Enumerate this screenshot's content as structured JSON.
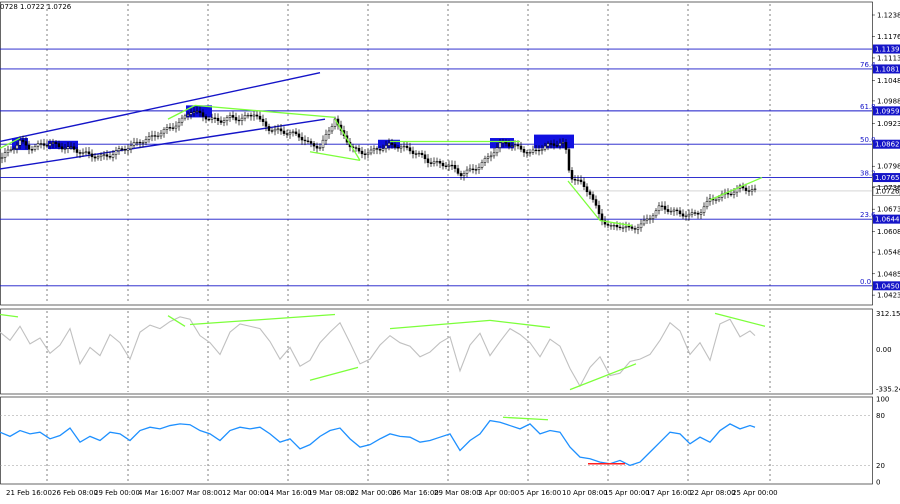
{
  "header": {
    "ohlc_text": "0728 1.0722 1.0726"
  },
  "chart_data": [
    {
      "type": "candlestick",
      "price_axis_ticks": [
        "1.1238",
        "1.1176",
        "1.1113",
        "1.1048",
        "1.0988",
        "1.0923",
        "1.0798",
        "1.0736",
        "1.0673",
        "1.0608",
        "1.0548",
        "1.0485",
        "1.0423"
      ],
      "ylim": [
        1.04,
        1.127
      ],
      "horizontal_levels": [
        {
          "value": 1.1139,
          "label": "1.1139",
          "fibo": ""
        },
        {
          "value": 1.1081,
          "label": "1.1081",
          "fibo": "76.4"
        },
        {
          "value": 1.0959,
          "label": "1.0959",
          "fibo": "61.8"
        },
        {
          "value": 1.0862,
          "label": "1.0862",
          "fibo": "50.0"
        },
        {
          "value": 1.0765,
          "label": "1.0765",
          "fibo": "38.2"
        },
        {
          "value": 1.0644,
          "label": "1.0644",
          "fibo": "23.6"
        },
        {
          "value": 1.045,
          "label": "1.0450",
          "fibo": "0.0"
        }
      ],
      "current_price": {
        "value": 1.0726,
        "label": "1.0726"
      },
      "x_labels": [
        "21 Feb 16:00",
        "26 Feb 08:00",
        "29 Feb 00:00",
        "4 Mar 16:00",
        "7 Mar 08:00",
        "12 Mar 00:00",
        "14 Mar 16:00",
        "19 Mar 08:00",
        "22 Mar 00:00",
        "26 Mar 16:00",
        "29 Mar 08:00",
        "3 Apr 00:00",
        "5 Apr 16:00",
        "10 Apr 08:00",
        "15 Apr 00:00",
        "17 Apr 16:00",
        "22 Apr 08:00",
        "25 Apr 00:00"
      ],
      "close_path": [
        [
          0,
          1.082
        ],
        [
          10,
          1.0845
        ],
        [
          20,
          1.087
        ],
        [
          30,
          1.085
        ],
        [
          40,
          1.086
        ],
        [
          50,
          1.0865
        ],
        [
          60,
          1.0855
        ],
        [
          70,
          1.085
        ],
        [
          80,
          1.084
        ],
        [
          90,
          1.083
        ],
        [
          100,
          1.0825
        ],
        [
          110,
          1.083
        ],
        [
          120,
          1.0845
        ],
        [
          130,
          1.0855
        ],
        [
          140,
          1.087
        ],
        [
          150,
          1.088
        ],
        [
          160,
          1.0895
        ],
        [
          170,
          1.091
        ],
        [
          180,
          1.0925
        ],
        [
          190,
          1.096
        ],
        [
          200,
          1.095
        ],
        [
          210,
          1.0935
        ],
        [
          220,
          1.093
        ],
        [
          230,
          1.094
        ],
        [
          240,
          1.0935
        ],
        [
          250,
          1.0945
        ],
        [
          255,
          1.0955
        ],
        [
          260,
          1.093
        ],
        [
          270,
          1.0905
        ],
        [
          280,
          1.09
        ],
        [
          290,
          1.0895
        ],
        [
          300,
          1.0885
        ],
        [
          310,
          1.086
        ],
        [
          320,
          1.0855
        ],
        [
          330,
          1.0905
        ],
        [
          335,
          1.094
        ],
        [
          340,
          1.09
        ],
        [
          350,
          1.086
        ],
        [
          360,
          1.0835
        ],
        [
          370,
          1.084
        ],
        [
          380,
          1.085
        ],
        [
          390,
          1.086
        ],
        [
          400,
          1.0855
        ],
        [
          410,
          1.0845
        ],
        [
          420,
          1.083
        ],
        [
          430,
          1.081
        ],
        [
          440,
          1.0805
        ],
        [
          450,
          1.08
        ],
        [
          460,
          1.0775
        ],
        [
          470,
          1.0785
        ],
        [
          480,
          1.08
        ],
        [
          490,
          1.083
        ],
        [
          500,
          1.086
        ],
        [
          505,
          1.087
        ],
        [
          510,
          1.086
        ],
        [
          520,
          1.085
        ],
        [
          530,
          1.0835
        ],
        [
          540,
          1.085
        ],
        [
          550,
          1.086
        ],
        [
          560,
          1.0865
        ],
        [
          565,
          1.086
        ],
        [
          570,
          1.077
        ],
        [
          580,
          1.075
        ],
        [
          590,
          1.072
        ],
        [
          600,
          1.065
        ],
        [
          610,
          1.062
        ],
        [
          620,
          1.0625
        ],
        [
          630,
          1.0615
        ],
        [
          640,
          1.0625
        ],
        [
          650,
          1.065
        ],
        [
          660,
          1.068
        ],
        [
          670,
          1.067
        ],
        [
          680,
          1.066
        ],
        [
          690,
          1.0655
        ],
        [
          700,
          1.0665
        ],
        [
          710,
          1.07
        ],
        [
          720,
          1.071
        ],
        [
          730,
          1.072
        ],
        [
          740,
          1.0735
        ],
        [
          750,
          1.073
        ],
        [
          755,
          1.0726
        ]
      ],
      "trend_channel": {
        "upper": [
          [
            0,
            1.087
          ],
          [
            320,
            1.107
          ]
        ],
        "lower": [
          [
            0,
            1.079
          ],
          [
            325,
            1.0935
          ]
        ]
      },
      "green_lines": [
        [
          [
            0,
            1.085
          ],
          [
            20,
            1.088
          ]
        ],
        [
          [
            168,
            1.0935
          ],
          [
            195,
            1.0975
          ]
        ],
        [
          [
            195,
            1.0975
          ],
          [
            335,
            1.094
          ]
        ],
        [
          [
            310,
            1.084
          ],
          [
            360,
            1.0815
          ]
        ],
        [
          [
            335,
            1.0935
          ],
          [
            360,
            1.0815
          ]
        ],
        [
          [
            390,
            1.087
          ],
          [
            520,
            1.087
          ]
        ],
        [
          [
            568,
            1.0755
          ],
          [
            600,
            1.064
          ]
        ],
        [
          [
            600,
            1.064
          ],
          [
            632,
            1.0625
          ]
        ],
        [
          [
            710,
            1.07
          ],
          [
            762,
            1.0765
          ]
        ]
      ],
      "blue_boxes": [
        {
          "x0": 12,
          "x1": 28,
          "y0": 1.0845,
          "y1": 1.088
        },
        {
          "x0": 48,
          "x1": 78,
          "y0": 1.0848,
          "y1": 1.0872
        },
        {
          "x0": 186,
          "x1": 212,
          "y0": 1.094,
          "y1": 1.0975
        },
        {
          "x0": 378,
          "x1": 400,
          "y0": 1.085,
          "y1": 1.0875
        },
        {
          "x0": 490,
          "x1": 514,
          "y0": 1.085,
          "y1": 1.088
        },
        {
          "x0": 534,
          "x1": 574,
          "y0": 1.085,
          "y1": 1.089
        }
      ],
      "vertical_grid_x": [
        47,
        128,
        208,
        288,
        368,
        448,
        528,
        608,
        688,
        770
      ]
    },
    {
      "type": "line",
      "name": "oscillator",
      "y_ticks": [
        "312.1539",
        "0.00",
        "-335.2476"
      ],
      "ylim": [
        -360,
        330
      ],
      "x": [
        0,
        10,
        20,
        30,
        40,
        50,
        60,
        70,
        80,
        90,
        100,
        110,
        120,
        130,
        140,
        150,
        160,
        170,
        180,
        190,
        200,
        210,
        220,
        230,
        240,
        250,
        260,
        270,
        280,
        290,
        300,
        310,
        320,
        330,
        340,
        350,
        360,
        370,
        380,
        390,
        400,
        410,
        420,
        430,
        440,
        450,
        460,
        470,
        480,
        490,
        500,
        510,
        520,
        530,
        540,
        550,
        560,
        570,
        580,
        590,
        600,
        610,
        620,
        630,
        640,
        650,
        660,
        670,
        680,
        690,
        700,
        710,
        720,
        730,
        740,
        750,
        755
      ],
      "values": [
        150,
        80,
        200,
        50,
        100,
        -30,
        40,
        180,
        -120,
        20,
        -50,
        130,
        60,
        -80,
        150,
        210,
        180,
        240,
        280,
        260,
        120,
        60,
        -40,
        150,
        220,
        200,
        180,
        70,
        -80,
        20,
        -140,
        -90,
        60,
        150,
        230,
        60,
        -120,
        -80,
        40,
        120,
        60,
        30,
        -60,
        -20,
        60,
        110,
        -180,
        40,
        140,
        -50,
        70,
        180,
        130,
        60,
        -60,
        90,
        30,
        -160,
        -310,
        -150,
        -60,
        -220,
        -200,
        -100,
        -80,
        -40,
        80,
        230,
        160,
        -40,
        60,
        -90,
        220,
        260,
        110,
        160,
        120
      ],
      "green_lines": [
        [
          [
            0,
            300
          ],
          [
            18,
            280
          ]
        ],
        [
          [
            168,
            290
          ],
          [
            185,
            200
          ]
        ],
        [
          [
            190,
            215
          ],
          [
            335,
            300
          ]
        ],
        [
          [
            310,
            -260
          ],
          [
            358,
            -150
          ]
        ],
        [
          [
            390,
            180
          ],
          [
            490,
            250
          ]
        ],
        [
          [
            490,
            250
          ],
          [
            550,
            190
          ]
        ],
        [
          [
            570,
            -340
          ],
          [
            636,
            -120
          ]
        ],
        [
          [
            715,
            310
          ],
          [
            765,
            200
          ]
        ]
      ]
    },
    {
      "type": "line",
      "name": "rsi",
      "y_ticks": [
        "100",
        "80",
        "20",
        "0"
      ],
      "ylim": [
        0,
        100
      ],
      "x": [
        0,
        10,
        20,
        30,
        40,
        50,
        60,
        70,
        80,
        90,
        100,
        110,
        120,
        130,
        140,
        150,
        160,
        170,
        180,
        190,
        200,
        210,
        220,
        230,
        240,
        250,
        260,
        270,
        280,
        290,
        300,
        310,
        320,
        330,
        340,
        350,
        360,
        370,
        380,
        390,
        400,
        410,
        420,
        430,
        440,
        450,
        460,
        470,
        480,
        490,
        500,
        510,
        520,
        530,
        540,
        550,
        560,
        570,
        580,
        590,
        600,
        610,
        620,
        630,
        640,
        650,
        660,
        670,
        680,
        690,
        700,
        710,
        720,
        730,
        740,
        750,
        755
      ],
      "values": [
        60,
        55,
        62,
        58,
        60,
        52,
        56,
        65,
        48,
        55,
        50,
        60,
        58,
        50,
        62,
        66,
        64,
        68,
        70,
        69,
        62,
        58,
        50,
        62,
        66,
        64,
        66,
        58,
        48,
        52,
        40,
        45,
        55,
        62,
        65,
        52,
        42,
        45,
        52,
        58,
        55,
        54,
        48,
        50,
        54,
        58,
        38,
        50,
        58,
        74,
        72,
        68,
        64,
        70,
        58,
        62,
        60,
        42,
        30,
        28,
        24,
        22,
        26,
        20,
        24,
        36,
        48,
        60,
        58,
        46,
        54,
        48,
        62,
        70,
        64,
        68,
        66
      ],
      "red_marks": [
        [
          [
            588,
            22
          ],
          [
            625,
            22
          ]
        ]
      ],
      "green_lines": [
        [
          [
            503,
            78
          ],
          [
            548,
            75
          ]
        ]
      ]
    }
  ],
  "colors": {
    "price": "#000000",
    "level": "#1414c8",
    "box": "#1010e0",
    "trend": "#7cff3a",
    "oscillator": "#c0c0c0",
    "rsi": "#1e90ff",
    "red": "#ff2020"
  }
}
